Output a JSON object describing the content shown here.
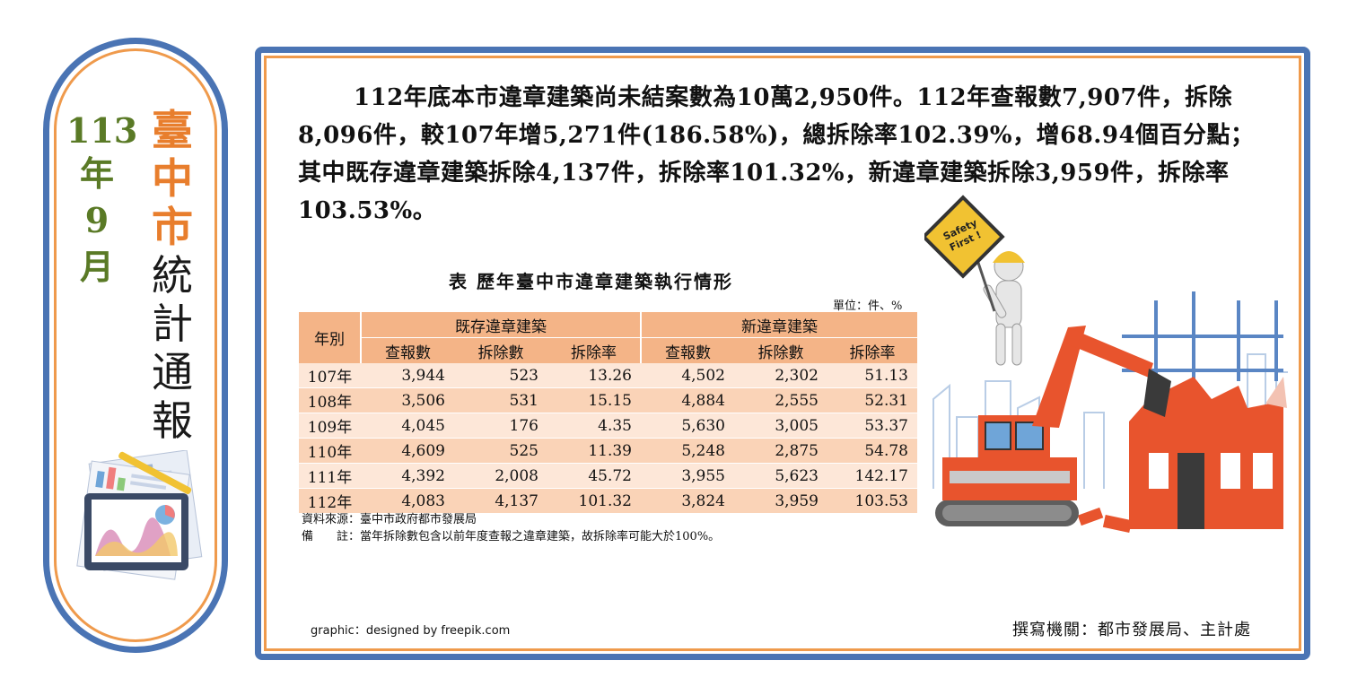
{
  "issue": {
    "number": "113",
    "year_char": "年",
    "month": "9",
    "month_char": "月"
  },
  "title_chars": {
    "orange": [
      "臺",
      "中",
      "市"
    ],
    "dark": [
      "統",
      "計",
      "通",
      "報"
    ]
  },
  "paragraph": "112年底本市違章建築尚未結案數為10萬2,950件。112年查報數7,907件，拆除8,096件，較107年增5,271件(186.58%)，總拆除率102.39%，增68.94個百分點；其中既存違章建築拆除4,137件，拆除率101.32%，新違章建築拆除3,959件，拆除率103.53%。",
  "table": {
    "title": "表 歷年臺中市違章建築執行情形",
    "unit": "單位：件、%",
    "col_year": "年別",
    "group_existing": "既存違章建築",
    "group_new": "新違章建築",
    "sub_headers": [
      "查報數",
      "拆除數",
      "拆除率",
      "查報數",
      "拆除數",
      "拆除率"
    ],
    "rows": [
      [
        "107年",
        "3,944",
        "523",
        "13.26",
        "4,502",
        "2,302",
        "51.13"
      ],
      [
        "108年",
        "3,506",
        "531",
        "15.15",
        "4,884",
        "2,555",
        "52.31"
      ],
      [
        "109年",
        "4,045",
        "176",
        "4.35",
        "5,630",
        "3,005",
        "53.37"
      ],
      [
        "110年",
        "4,609",
        "525",
        "11.39",
        "5,248",
        "2,875",
        "54.78"
      ],
      [
        "111年",
        "4,392",
        "2,008",
        "45.72",
        "3,955",
        "5,623",
        "142.17"
      ],
      [
        "112年",
        "4,083",
        "4,137",
        "101.32",
        "3,824",
        "3,959",
        "103.53"
      ]
    ]
  },
  "notes": {
    "source": "資料來源：臺中市政府都市發展局",
    "remark": "備　　註：當年拆除數包含以前年度查報之違章建築，故拆除率可能大於100%。"
  },
  "credit": "graphic：designed by freepik.com",
  "author": "撰寫機關：都市發展局、主計處",
  "sign_text": [
    "Safety",
    "First !"
  ],
  "colors": {
    "blue": "#4a74b4",
    "orange": "#ef9a4c",
    "green": "#5a7a26",
    "header": "#f4b487",
    "excavator": "#e8542d"
  }
}
